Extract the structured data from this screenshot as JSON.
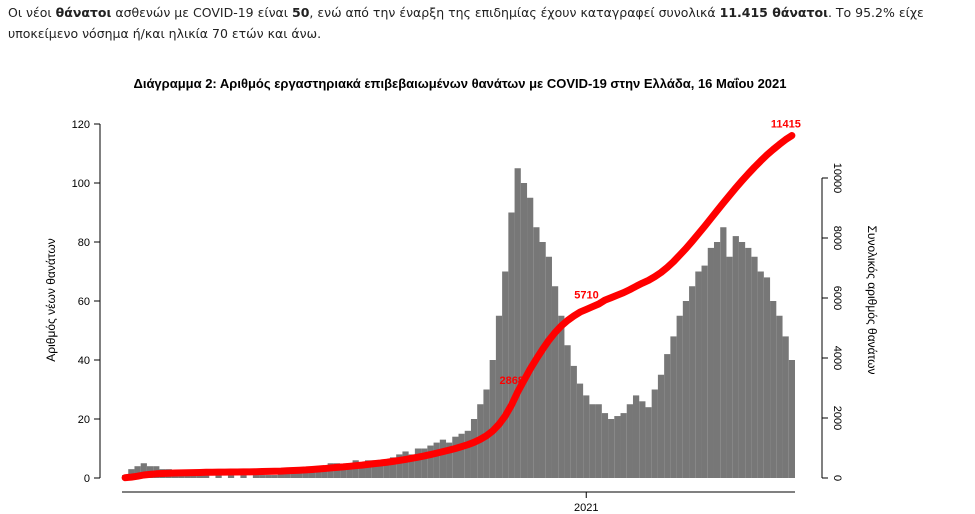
{
  "paragraph": [
    "Οι νέοι ",
    "θάνατοι",
    " ασθενών με COVID-19 είναι ",
    "50",
    ", ενώ από την έναρξη της επιδημίας έχουν καταγραφεί συνολικά ",
    "11.415 θάνατοι",
    ".  Το 95.2% είχε υποκείμενο νόσημα ή/και ηλικία 70 ετών και άνω."
  ],
  "chart_data": {
    "type": "bar-line",
    "title": "Διάγραμμα 2: Αριθμός εργαστηριακά επιβεβαιωμένων θανάτων με COVID-19 στην Ελλάδα, 16 Μαΐου 2021",
    "y_label": "Αριθμός νέων θανάτων",
    "y2_label": "Συνολικός αριθμός θανάτων",
    "categories": [
      null,
      null,
      null,
      null,
      null,
      null,
      null,
      null,
      null,
      null,
      null,
      null,
      null,
      null,
      null,
      null,
      null,
      null,
      null,
      null,
      null,
      null,
      null,
      null,
      null,
      null,
      null,
      null,
      null,
      null,
      null,
      null,
      null,
      null,
      null,
      null,
      null,
      null,
      null,
      null,
      null,
      null,
      null,
      null,
      null,
      null,
      null,
      null,
      null,
      null,
      null,
      null,
      null,
      null,
      null,
      null,
      null,
      null,
      null,
      null,
      null,
      null,
      null,
      null,
      null,
      null,
      null,
      null,
      null,
      null,
      null,
      null,
      null,
      null,
      "2021",
      null,
      null,
      null,
      null,
      null,
      null,
      null,
      null,
      null,
      null,
      null,
      null,
      null,
      null,
      null,
      null,
      null,
      null,
      null,
      null,
      null,
      null,
      null,
      null,
      null,
      null,
      null,
      null,
      null,
      null,
      null,
      null,
      null
    ],
    "ylim": [
      0,
      120
    ],
    "yticks": [
      0,
      20,
      40,
      60,
      80,
      100,
      120
    ],
    "y2lim": [
      0,
      11800
    ],
    "y2ticks": [
      0,
      2000,
      4000,
      6000,
      8000,
      10000
    ],
    "series": [
      {
        "color": "#777777",
        "values": [
          1,
          3,
          4,
          5,
          4,
          4,
          3,
          3,
          2,
          2,
          1,
          1,
          1,
          1,
          0,
          1,
          0,
          1,
          0,
          1,
          0,
          1,
          1,
          1,
          1,
          2,
          2,
          2,
          3,
          3,
          3,
          4,
          4,
          5,
          5,
          4,
          5,
          6,
          5,
          6,
          6,
          5,
          6,
          7,
          8,
          9,
          8,
          10,
          10,
          11,
          12,
          13,
          12,
          14,
          15,
          16,
          20,
          25,
          30,
          40,
          55,
          70,
          90,
          105,
          100,
          95,
          85,
          80,
          75,
          65,
          55,
          45,
          38,
          32,
          28,
          25,
          25,
          22,
          20,
          21,
          22,
          25,
          28,
          26,
          24,
          30,
          35,
          42,
          48,
          55,
          60,
          65,
          70,
          72,
          78,
          80,
          85,
          75,
          82,
          80,
          78,
          75,
          70,
          68,
          60,
          55,
          48,
          40
        ]
      },
      {
        "color": "#ff0000",
        "axis": "y2",
        "type": "line",
        "values": [
          10,
          30,
          60,
          100,
          120,
          140,
          150,
          160,
          165,
          170,
          175,
          180,
          185,
          190,
          190,
          195,
          195,
          200,
          200,
          205,
          205,
          210,
          215,
          220,
          225,
          230,
          240,
          250,
          260,
          270,
          285,
          300,
          315,
          335,
          355,
          370,
          390,
          410,
          430,
          455,
          480,
          500,
          525,
          555,
          585,
          620,
          655,
          695,
          735,
          780,
          830,
          880,
          930,
          985,
          1045,
          1110,
          1190,
          1290,
          1410,
          1570,
          1790,
          2070,
          2430,
          2868,
          3250,
          3630,
          3970,
          4290,
          4590,
          4850,
          5070,
          5250,
          5400,
          5530,
          5620,
          5710,
          5800,
          5930,
          6010,
          6095,
          6180,
          6280,
          6390,
          6495,
          6590,
          6710,
          6850,
          7020,
          7210,
          7430,
          7650,
          7890,
          8140,
          8390,
          8650,
          8910,
          9170,
          9420,
          9670,
          9910,
          10140,
          10360,
          10570,
          10770,
          10950,
          11120,
          11280,
          11415
        ],
        "value_labels": [
          null,
          null,
          null,
          null,
          null,
          null,
          null,
          null,
          null,
          null,
          null,
          null,
          null,
          null,
          null,
          null,
          null,
          null,
          null,
          null,
          null,
          null,
          null,
          null,
          null,
          null,
          null,
          null,
          null,
          null,
          null,
          null,
          null,
          null,
          null,
          null,
          null,
          null,
          null,
          null,
          null,
          null,
          null,
          null,
          null,
          null,
          null,
          null,
          null,
          null,
          null,
          null,
          null,
          null,
          null,
          null,
          null,
          null,
          null,
          null,
          null,
          null,
          null,
          "2868",
          null,
          null,
          null,
          null,
          null,
          null,
          null,
          null,
          null,
          null,
          null,
          "5710",
          null,
          null,
          null,
          null,
          null,
          null,
          null,
          null,
          null,
          null,
          null,
          null,
          null,
          null,
          null,
          null,
          null,
          null,
          null,
          null,
          null,
          null,
          null,
          null,
          null,
          null,
          null,
          null,
          null,
          null,
          null,
          "11415"
        ]
      }
    ]
  }
}
